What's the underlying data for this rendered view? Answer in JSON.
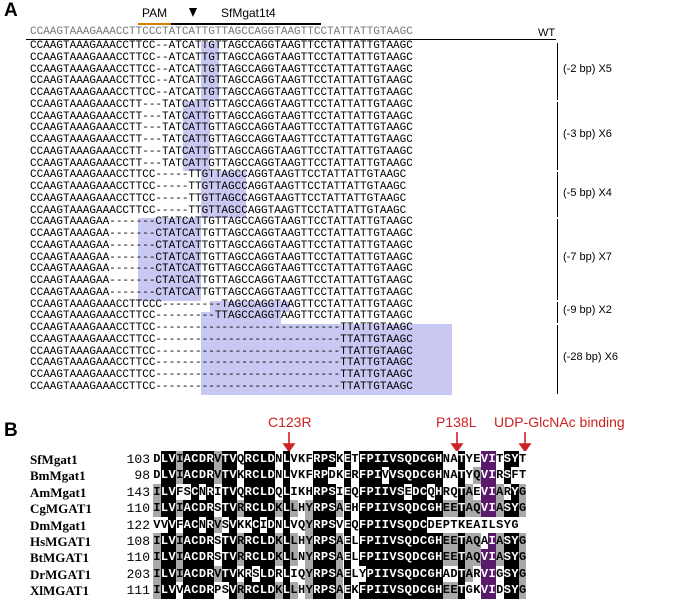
{
  "panel_a": {
    "label": "A",
    "pam_label": "PAM",
    "gene_label": "SfMgat1t4",
    "wt_sequence": "CCAAGTAAAGAAACCTTCCCTATCATTGTTAGCCAGGTAAGTTCCTATTATTGTAAGC",
    "wt_label": "WT",
    "groups": [
      {
        "label": "(-2 bp) X5",
        "rows": [
          "CCAAGTAAAGAAACCTTCC--ATCATTGTTAGCCAGGTAAGTTCCTATTATTGTAAGC",
          "CCAAGTAAAGAAACCTTCC--ATCATTGTTAGCCAGGTAAGTTCCTATTATTGTAAGC",
          "CCAAGTAAAGAAACCTTCC--ATCATTGTTAGCCAGGTAAGTTCCTATTATTGTAAGC",
          "CCAAGTAAAGAAACCTTCC--ATCATTGTTAGCCAGGTAAGTTCCTATTATTGTAAGC",
          "CCAAGTAAAGAAACCTTCC--ATCATTGTTAGCCAGGTAAGTTCCTATTATTGTAAGC"
        ]
      },
      {
        "label": "(-3 bp) X6",
        "rows": [
          "CCAAGTAAAGAAACCTT---TATCATTGTTAGCCAGGTAAGTTCCTATTATTGTAAGC",
          "CCAAGTAAAGAAACCTT---TATCATTGTTAGCCAGGTAAGTTCCTATTATTGTAAGC",
          "CCAAGTAAAGAAACCTT---TATCATTGTTAGCCAGGTAAGTTCCTATTATTGTAAGC",
          "CCAAGTAAAGAAACCTT---TATCATTGTTAGCCAGGTAAGTTCCTATTATTGTAAGC",
          "CCAAGTAAAGAAACCTT---TATCATTGTTAGCCAGGTAAGTTCCTATTATTGTAAGC",
          "CCAAGTAAAGAAACCTT---TATCATTGTTAGCCAGGTAAGTTCCTATTATTGTAAGC"
        ]
      },
      {
        "label": "(-5 bp) X4",
        "rows": [
          "CCAAGTAAAGAAACCTTCC-----TTGTTAGCCAGGTAAGTTCCTATTATTGTAAGC",
          "CCAAGTAAAGAAACCTTCC-----TTGTTAGCCAGGTAAGTTCCTATTATTGTAAGC",
          "CCAAGTAAAGAAACCTTCC-----TTGTTAGCCAGGTAAGTTCCTATTATTGTAAGC",
          "CCAAGTAAAGAAACCTTCC-----TTGTTAGCCAGGTAAGTTCCTATTATTGTAAGC"
        ]
      },
      {
        "label": "(-7 bp) X7",
        "rows": [
          "CCAAGTAAAGAA-------CTATCATTGTTAGCCAGGTAAGTTCCTATTATTGTAAGC",
          "CCAAGTAAAGAA-------CTATCATTGTTAGCCAGGTAAGTTCCTATTATTGTAAGC",
          "CCAAGTAAAGAA-------CTATCATTGTTAGCCAGGTAAGTTCCTATTATTGTAAGC",
          "CCAAGTAAAGAA-------CTATCATTGTTAGCCAGGTAAGTTCCTATTATTGTAAGC",
          "CCAAGTAAAGAA-------CTATCATTGTTAGCCAGGTAAGTTCCTATTATTGTAAGC",
          "CCAAGTAAAGAA-------CTATCATTGTTAGCCAGGTAAGTTCCTATTATTGTAAGC",
          "CCAAGTAAAGAA-------CTATCATTGTTAGCCAGGTAAGTTCCTATTATTGTAAGC"
        ]
      },
      {
        "label": "(-9 bp) X2",
        "rows": [
          "CCAAGTAAAGAAACCTTCCC---------TAGCCAGGTAAGTTCCTATTATTGTAAGC",
          "CCAAGTAAAGAAACCTTCC---------TTAGCCAGGTAAGTTCCTATTATTGTAAGC"
        ]
      },
      {
        "label": "(-28 bp) X6",
        "rows": [
          "CCAAGTAAAGAAACCTTCC----------------------------TTATTGTAAGC",
          "CCAAGTAAAGAAACCTTCC----------------------------TTATTGTAAGC",
          "CCAAGTAAAGAAACCTTCC----------------------------TTATTGTAAGC",
          "CCAAGTAAAGAAACCTTCC----------------------------TTATTGTAAGC",
          "CCAAGTAAAGAAACCTTCC----------------------------TTATTGTAAGC",
          "CCAAGTAAAGAAACCTTCC----------------------------TTATTGTAAGC"
        ]
      }
    ]
  },
  "panel_b": {
    "label": "B",
    "annotations": [
      "C123R",
      "P138L",
      "UDP-GlcNAc binding"
    ],
    "sequences": [
      {
        "name": "SfMgat1",
        "start": "103",
        "seq": "DLVIACDRVTVQRCLDNLVKFRPSKETFPIIVSQDCGHNATYEVITSYT"
      },
      {
        "name": "BmMgat1",
        "start": "98",
        "seq": "DLVIACDRVTVKRCLDNLVKFRPDKERFPIVVSQDCGHNATYQVIRSFT"
      },
      {
        "name": "AmMgat1",
        "start": "143",
        "seq": "ILVFSCNRITVQRCLDQLIKHRPSIEQFPIIVSEDCQHRQTAEVIARYG"
      },
      {
        "name": "CgMGAT1",
        "start": "110",
        "seq": "ILVIACDRSTVRRCLDKLLHYRPSAEHFPIIVSQDCGHEETAQVIASYG"
      },
      {
        "name": "DmMgat1",
        "start": "122",
        "seq": "VVVFACNRVSVKKCIDNLVQYRPSVEQFPIIVSQDCDEPTKEAILSYG"
      },
      {
        "name": "HsMGAT1",
        "start": "108",
        "seq": "ILVIACDRSTVRRCLDKLLHYRPSAELFPIIVSQDCGHEETAQAIASYG"
      },
      {
        "name": "BtMGAT1",
        "start": "110",
        "seq": "ILVIACDRSTVRRCLDKLLNYRPSAELFPIIVSQDCGHEETAQVIASYG"
      },
      {
        "name": "DrMGAT1",
        "start": "203",
        "seq": "ILVIACDRVTVKRSLDRLIQYRPSAELYPIIVSQDCGHADTARVIGSYG"
      },
      {
        "name": "XlMGAT1",
        "start": "111",
        "seq": "ILVVACDRPSVRRCLDKLLHYRPSAEKFPIIVSQDCGHEETGKVIDSYG"
      }
    ]
  },
  "colors": {
    "deletion_shade": "#c8c8f2",
    "annotation_red": "#cc2222",
    "binding_highlight": "#cc88dd",
    "pam_underline": "#e07b00"
  }
}
